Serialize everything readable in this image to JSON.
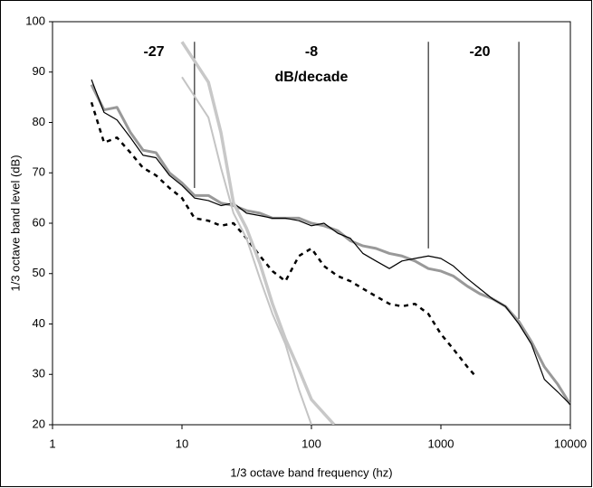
{
  "chart_data": {
    "type": "line",
    "xlabel": "1/3 octave band frequency (hz)",
    "ylabel": "1/3 octave band level (dB)",
    "xscale": "log",
    "xlim": [
      1,
      10000
    ],
    "xticks": [
      1,
      10,
      100,
      1000,
      10000
    ],
    "ylim": [
      20,
      100
    ],
    "yticks": [
      20,
      30,
      40,
      50,
      60,
      70,
      80,
      90,
      100
    ],
    "grid": false,
    "annotations": [
      "-27",
      "-8",
      "dB/decade",
      "-20"
    ],
    "vlines": [
      {
        "x": 12.5,
        "ylim": [
          67,
          96
        ]
      },
      {
        "x": 800,
        "ylim": [
          55,
          96
        ]
      },
      {
        "x": 4000,
        "ylim": [
          41,
          96
        ]
      }
    ],
    "series": [
      {
        "color": "#999999",
        "width": 3,
        "dash": false,
        "x": [
          2,
          2.5,
          3.15,
          4,
          5,
          6.3,
          8,
          10,
          12.5,
          16,
          20,
          25,
          31.5,
          40,
          50,
          63,
          80,
          100,
          125,
          160,
          200,
          250,
          315,
          400,
          500,
          630,
          800,
          1000,
          1250,
          1600,
          2000,
          2500,
          3150,
          4000,
          5000,
          6300,
          8000,
          10000
        ],
        "values": [
          87.5,
          82.5,
          83,
          78,
          74.5,
          74,
          70,
          68,
          65.5,
          65.5,
          64,
          63.5,
          62.5,
          62,
          61,
          61,
          61,
          60,
          59.5,
          58.5,
          56.5,
          55.5,
          55,
          54,
          53.5,
          52.5,
          51,
          50.5,
          49.5,
          47.5,
          46,
          45,
          43.5,
          40.5,
          36.5,
          31.5,
          28,
          24
        ]
      },
      {
        "color": "#000000",
        "width": 1.2,
        "dash": false,
        "x": [
          2,
          2.5,
          3.15,
          4,
          5,
          6.3,
          8,
          10,
          12.5,
          16,
          20,
          25,
          31.5,
          40,
          50,
          63,
          80,
          100,
          125,
          160,
          200,
          250,
          315,
          400,
          500,
          630,
          800,
          1000,
          1250,
          1600,
          2000,
          2500,
          3150,
          4000,
          5000,
          6300,
          8000,
          10000
        ],
        "values": [
          88.5,
          82,
          80.5,
          77,
          73.5,
          73,
          69.5,
          67.5,
          65,
          64.5,
          63.5,
          64,
          62,
          61.5,
          61,
          61,
          60.5,
          59.5,
          60,
          58,
          57,
          54,
          52.5,
          51,
          52.5,
          53,
          53.5,
          53,
          51.5,
          49,
          47,
          45,
          43.5,
          40,
          36,
          29,
          26.5,
          24
        ]
      },
      {
        "color": "#000000",
        "width": 2.5,
        "dash": true,
        "x": [
          2,
          2.5,
          3.15,
          4,
          5,
          6.3,
          8,
          10,
          12.5,
          16,
          20,
          25,
          31.5,
          40,
          50,
          63,
          80,
          100,
          125,
          160,
          200,
          250,
          315,
          400,
          500,
          630,
          800,
          1000,
          1250,
          1600,
          1800
        ],
        "values": [
          84,
          76,
          77,
          74,
          71,
          69.5,
          67,
          65,
          61,
          60.5,
          59.5,
          60,
          57,
          53.5,
          50.5,
          48.5,
          53.5,
          55,
          51.5,
          49.5,
          48.5,
          47,
          45.5,
          44,
          43.5,
          44,
          42,
          38,
          35,
          31.5,
          30
        ]
      },
      {
        "color": "#c4c4c4",
        "width": 2,
        "dash": false,
        "x": [
          10,
          16,
          20,
          25,
          31.5,
          40,
          50,
          63,
          80,
          100
        ],
        "values": [
          89,
          81,
          71,
          62,
          57,
          49,
          42,
          36,
          27,
          20
        ]
      },
      {
        "color": "#c8c8c8",
        "width": 3.5,
        "dash": false,
        "x": [
          10,
          16,
          20,
          25,
          31.5,
          40,
          50,
          63,
          80,
          100,
          150
        ],
        "values": [
          96,
          88,
          78,
          64,
          59,
          52,
          44,
          37,
          31,
          25,
          20
        ]
      }
    ]
  }
}
